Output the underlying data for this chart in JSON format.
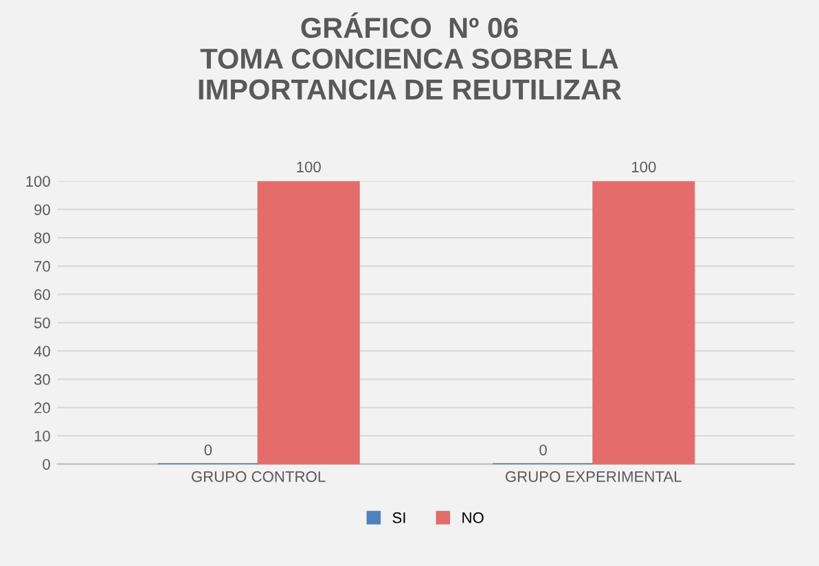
{
  "chart_data": {
    "type": "bar",
    "title": "GRÁFICO  Nº 06\nTOMA CONCIENCA SOBRE LA\nIMPORTANCIA DE REUTILIZAR",
    "categories": [
      "GRUPO CONTROL",
      "GRUPO EXPERIMENTAL"
    ],
    "series": [
      {
        "name": "SI",
        "color": "#4f81bd",
        "values": [
          0,
          0
        ]
      },
      {
        "name": "NO",
        "color": "#e46c6a",
        "values": [
          100,
          100
        ]
      }
    ],
    "ylim": [
      0,
      100
    ],
    "yticks": [
      0,
      10,
      20,
      30,
      40,
      50,
      60,
      70,
      80,
      90,
      100
    ],
    "grid": "y",
    "legend": "bottom",
    "data_labels": true
  }
}
